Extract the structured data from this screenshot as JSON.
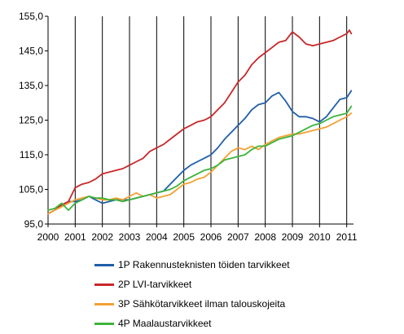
{
  "chart_data": {
    "type": "line",
    "title": "",
    "xlabel": "",
    "ylabel": "",
    "ylim": [
      95,
      155
    ],
    "yticks": [
      "95,0",
      "105,0",
      "115,0",
      "125,0",
      "135,0",
      "145,0",
      "155,0"
    ],
    "ytick_values": [
      95,
      105,
      115,
      125,
      135,
      145,
      155
    ],
    "xlim": [
      2000,
      2011.25
    ],
    "xticks": [
      "2000",
      "2001",
      "2002",
      "2003",
      "2004",
      "2005",
      "2006",
      "2007",
      "2008",
      "2009",
      "2010",
      "2011"
    ],
    "xtick_values": [
      2000,
      2001,
      2002,
      2003,
      2004,
      2005,
      2006,
      2007,
      2008,
      2009,
      2010,
      2011
    ],
    "grid": "vertical",
    "legend_placement": "bottom",
    "series": [
      {
        "name": "1P Rakennusteknisten  töiden tarvikkeet",
        "color": "#1f5fa8",
        "x": [
          2000.0,
          2000.25,
          2000.5,
          2000.75,
          2001.0,
          2001.25,
          2001.5,
          2001.75,
          2002.0,
          2002.25,
          2002.5,
          2002.75,
          2003.0,
          2003.25,
          2003.5,
          2003.75,
          2004.0,
          2004.25,
          2004.5,
          2004.75,
          2005.0,
          2005.25,
          2005.5,
          2005.75,
          2006.0,
          2006.25,
          2006.5,
          2006.75,
          2007.0,
          2007.25,
          2007.5,
          2007.75,
          2008.0,
          2008.25,
          2008.5,
          2008.75,
          2009.0,
          2009.25,
          2009.5,
          2009.75,
          2010.0,
          2010.25,
          2010.5,
          2010.75,
          2011.0,
          2011.17
        ],
        "values": [
          98.0,
          99.0,
          100.5,
          101.5,
          101.5,
          102.0,
          103.0,
          102.0,
          101.0,
          101.5,
          102.0,
          102.0,
          102.0,
          102.5,
          103.0,
          103.5,
          104.0,
          104.5,
          106.5,
          108.5,
          110.5,
          112.0,
          113.0,
          114.0,
          115.0,
          117.0,
          119.5,
          121.5,
          123.5,
          125.5,
          128.0,
          129.5,
          130.0,
          132.0,
          133.0,
          130.5,
          127.5,
          126.0,
          126.0,
          125.5,
          124.5,
          126.0,
          128.5,
          131.0,
          131.5,
          133.5
        ]
      },
      {
        "name": "2P LVI-tarvikkeet",
        "color": "#c8282a",
        "x": [
          2000.0,
          2000.25,
          2000.5,
          2000.75,
          2001.0,
          2001.25,
          2001.5,
          2001.75,
          2002.0,
          2002.25,
          2002.5,
          2002.75,
          2003.0,
          2003.25,
          2003.5,
          2003.75,
          2004.0,
          2004.25,
          2004.5,
          2004.75,
          2005.0,
          2005.25,
          2005.5,
          2005.75,
          2006.0,
          2006.25,
          2006.5,
          2006.75,
          2007.0,
          2007.25,
          2007.5,
          2007.75,
          2008.0,
          2008.25,
          2008.5,
          2008.75,
          2009.0,
          2009.25,
          2009.5,
          2009.75,
          2010.0,
          2010.25,
          2010.5,
          2010.75,
          2011.0,
          2011.1,
          2011.17
        ],
        "values": [
          98.0,
          99.0,
          100.5,
          101.5,
          105.5,
          106.5,
          107.0,
          108.0,
          109.5,
          110.0,
          110.5,
          111.0,
          112.0,
          113.0,
          114.0,
          116.0,
          117.0,
          118.0,
          119.5,
          121.0,
          122.5,
          123.5,
          124.5,
          125.0,
          126.0,
          128.0,
          130.0,
          133.0,
          136.0,
          138.0,
          141.0,
          143.0,
          144.5,
          146.0,
          147.5,
          148.0,
          150.5,
          149.0,
          147.0,
          146.5,
          147.0,
          147.5,
          148.0,
          149.0,
          150.0,
          151.0,
          150.0
        ]
      },
      {
        "name": "3P Sähkötarvikkeet  ilman talouskojeita",
        "color": "#f4a032",
        "x": [
          2000.0,
          2000.25,
          2000.5,
          2000.75,
          2001.0,
          2001.25,
          2001.5,
          2001.75,
          2002.0,
          2002.25,
          2002.5,
          2002.75,
          2003.0,
          2003.25,
          2003.5,
          2003.75,
          2004.0,
          2004.25,
          2004.5,
          2004.75,
          2005.0,
          2005.25,
          2005.5,
          2005.75,
          2006.0,
          2006.25,
          2006.5,
          2006.75,
          2007.0,
          2007.25,
          2007.5,
          2007.75,
          2008.0,
          2008.25,
          2008.5,
          2008.75,
          2009.0,
          2009.25,
          2009.5,
          2009.75,
          2010.0,
          2010.25,
          2010.5,
          2010.75,
          2011.0,
          2011.17
        ],
        "values": [
          98.0,
          99.0,
          100.0,
          101.0,
          102.0,
          102.5,
          103.0,
          102.5,
          102.0,
          102.0,
          102.5,
          102.0,
          103.0,
          104.0,
          103.0,
          103.5,
          102.5,
          103.0,
          103.5,
          105.0,
          106.5,
          107.0,
          108.0,
          108.5,
          110.0,
          112.0,
          114.0,
          116.0,
          117.0,
          116.5,
          117.5,
          116.5,
          118.0,
          119.0,
          120.0,
          120.5,
          121.0,
          121.0,
          121.5,
          122.0,
          122.5,
          123.0,
          124.0,
          125.0,
          126.0,
          127.0
        ]
      },
      {
        "name": "4P Maalaustarvikkeet",
        "color": "#3cb43c",
        "x": [
          2000.0,
          2000.25,
          2000.5,
          2000.75,
          2001.0,
          2001.25,
          2001.5,
          2001.75,
          2002.0,
          2002.25,
          2002.5,
          2002.75,
          2003.0,
          2003.25,
          2003.5,
          2003.75,
          2004.0,
          2004.25,
          2004.5,
          2004.75,
          2005.0,
          2005.25,
          2005.5,
          2005.75,
          2006.0,
          2006.25,
          2006.5,
          2006.75,
          2007.0,
          2007.25,
          2007.5,
          2007.75,
          2008.0,
          2008.25,
          2008.5,
          2008.75,
          2009.0,
          2009.25,
          2009.5,
          2009.75,
          2010.0,
          2010.25,
          2010.5,
          2010.75,
          2011.0,
          2011.17
        ],
        "values": [
          99.0,
          99.5,
          101.0,
          99.0,
          101.0,
          102.0,
          103.0,
          102.5,
          102.5,
          102.0,
          102.0,
          101.5,
          102.0,
          102.5,
          103.0,
          103.5,
          104.0,
          104.5,
          105.0,
          106.0,
          107.5,
          108.5,
          109.5,
          110.5,
          111.0,
          112.0,
          113.5,
          114.0,
          114.5,
          115.0,
          116.5,
          117.5,
          117.5,
          118.5,
          119.5,
          120.0,
          120.5,
          121.5,
          122.5,
          123.5,
          124.0,
          125.0,
          126.0,
          126.5,
          127.0,
          129.0
        ]
      }
    ]
  }
}
